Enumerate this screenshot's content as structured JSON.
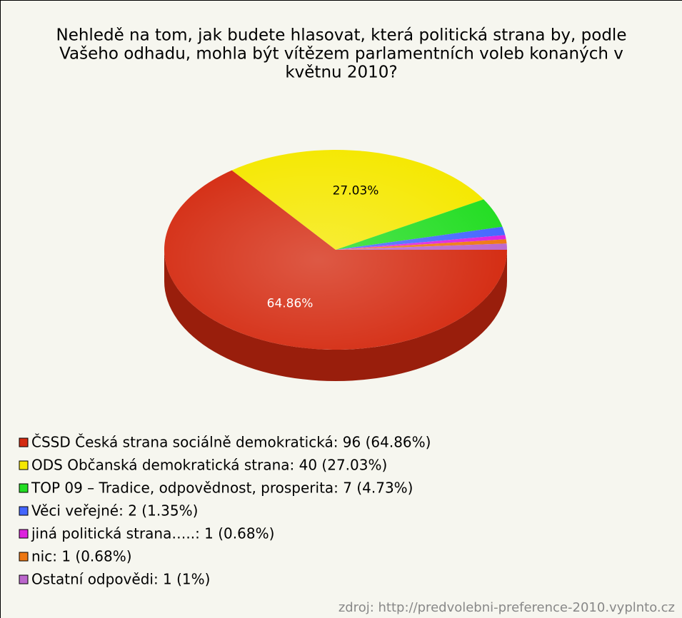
{
  "chart_data": {
    "type": "pie",
    "title": [
      "Nehledě na tom, jak budete hlasovat, která politická strana by, podle",
      "Vašeho odhadu, mohla být vítězem parlamentních voleb konaných v",
      "květnu 2010?"
    ],
    "categories": [
      "ČSSD Česká strana sociálně demokratická: 96 (64.86%)",
      "ODS Občanská demokratická strana: 40 (27.03%)",
      "TOP 09 – Tradice, odpovědnost, prosperita: 7 (4.73%)",
      "Věci veřejné: 2 (1.35%)",
      "jiná politická strana…..: 1 (0.68%)",
      "nic: 1 (0.68%)",
      "Ostatní odpovědi: 1 (1%)"
    ],
    "values": [
      64.86,
      27.03,
      4.73,
      1.35,
      0.68,
      0.68,
      1
    ],
    "value_labels": [
      "64.86%",
      "27.03%",
      null,
      null,
      null,
      null,
      null
    ],
    "colors": [
      "#d42a10",
      "#f5e800",
      "#22dd22",
      "#4466ff",
      "#dd22dd",
      "#ee7711",
      "#bb66cc"
    ],
    "legend": "bottom-left",
    "source": "zdroj: http://predvolebni-preference-2010.vyplnto.cz"
  }
}
